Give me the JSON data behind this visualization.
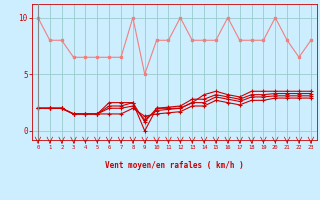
{
  "x": [
    0,
    1,
    2,
    3,
    4,
    5,
    6,
    7,
    8,
    9,
    10,
    11,
    12,
    13,
    14,
    15,
    16,
    17,
    18,
    19,
    20,
    21,
    22,
    23
  ],
  "series1": [
    10,
    8,
    8,
    6.5,
    6.5,
    6.5,
    6.5,
    6.5,
    10,
    5,
    8,
    8,
    10,
    8,
    8,
    8,
    10,
    8,
    8,
    8,
    10,
    8,
    6.5,
    8
  ],
  "series2": [
    2,
    2,
    2,
    1.5,
    1.5,
    1.5,
    2.5,
    2.5,
    2.5,
    0,
    2,
    2,
    2,
    2.5,
    3.2,
    3.5,
    3.2,
    3.0,
    3.5,
    3.5,
    3.5,
    3.5,
    3.5,
    3.5
  ],
  "series3": [
    2,
    2,
    2,
    1.5,
    1.5,
    1.5,
    2.2,
    2.2,
    2.5,
    0.8,
    2.0,
    2.1,
    2.2,
    2.8,
    2.8,
    3.2,
    3.0,
    2.8,
    3.2,
    3.2,
    3.3,
    3.3,
    3.3,
    3.3
  ],
  "series4": [
    2,
    2,
    2,
    1.5,
    1.5,
    1.5,
    2.0,
    2.0,
    2.2,
    1.0,
    1.8,
    1.9,
    2.0,
    2.5,
    2.5,
    3.0,
    2.8,
    2.6,
    3.0,
    3.0,
    3.1,
    3.1,
    3.1,
    3.1
  ],
  "series5": [
    2,
    2,
    2,
    1.5,
    1.5,
    1.5,
    1.5,
    1.5,
    2.0,
    1.3,
    1.5,
    1.6,
    1.7,
    2.2,
    2.2,
    2.7,
    2.5,
    2.3,
    2.7,
    2.7,
    2.9,
    2.9,
    2.9,
    2.9
  ],
  "color_light": "#f08080",
  "color_dark": "#cc0000",
  "bg_color": "#cceeff",
  "grid_color": "#99cccc",
  "xlabel": "Vent moyen/en rafales ( km/h )",
  "yticks": [
    0,
    5,
    10
  ],
  "xlim": [
    -0.5,
    23.5
  ],
  "ylim": [
    -0.8,
    11.2
  ]
}
